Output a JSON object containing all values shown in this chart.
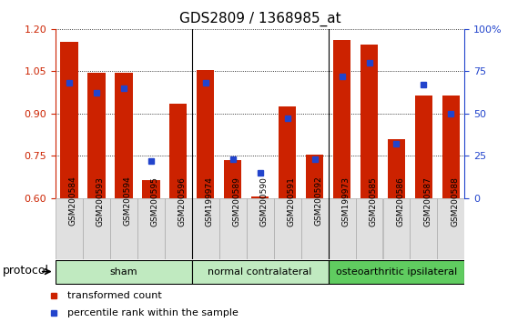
{
  "title": "GDS2809 / 1368985_at",
  "samples": [
    "GSM200584",
    "GSM200593",
    "GSM200594",
    "GSM200595",
    "GSM200596",
    "GSM199974",
    "GSM200589",
    "GSM200590",
    "GSM200591",
    "GSM200592",
    "GSM199973",
    "GSM200585",
    "GSM200586",
    "GSM200587",
    "GSM200588"
  ],
  "red_values": [
    1.155,
    1.045,
    1.045,
    0.665,
    0.935,
    1.055,
    0.735,
    0.605,
    0.925,
    0.755,
    1.16,
    1.145,
    0.81,
    0.965,
    0.965
  ],
  "blue_values_pct": [
    68,
    62,
    65,
    22,
    null,
    68,
    23,
    15,
    47,
    23,
    72,
    80,
    32,
    67,
    50
  ],
  "groups": [
    {
      "name": "sham",
      "start": 0,
      "end": 4,
      "color": "#b8eab8"
    },
    {
      "name": "normal contralateral",
      "start": 5,
      "end": 9,
      "color": "#b8eab8"
    },
    {
      "name": "osteoarthritic ipsilateral",
      "start": 10,
      "end": 14,
      "color": "#66cc66"
    }
  ],
  "ylim_left": [
    0.6,
    1.2
  ],
  "ylim_right": [
    0,
    100
  ],
  "yticks_left": [
    0.6,
    0.75,
    0.9,
    1.05,
    1.2
  ],
  "yticks_right": [
    0,
    25,
    50,
    75,
    100
  ],
  "red_color": "#cc2200",
  "blue_color": "#2244cc",
  "bar_width": 0.65,
  "legend_red": "transformed count",
  "legend_blue": "percentile rank within the sample",
  "protocol_label": "protocol",
  "background_color": "#ffffff"
}
